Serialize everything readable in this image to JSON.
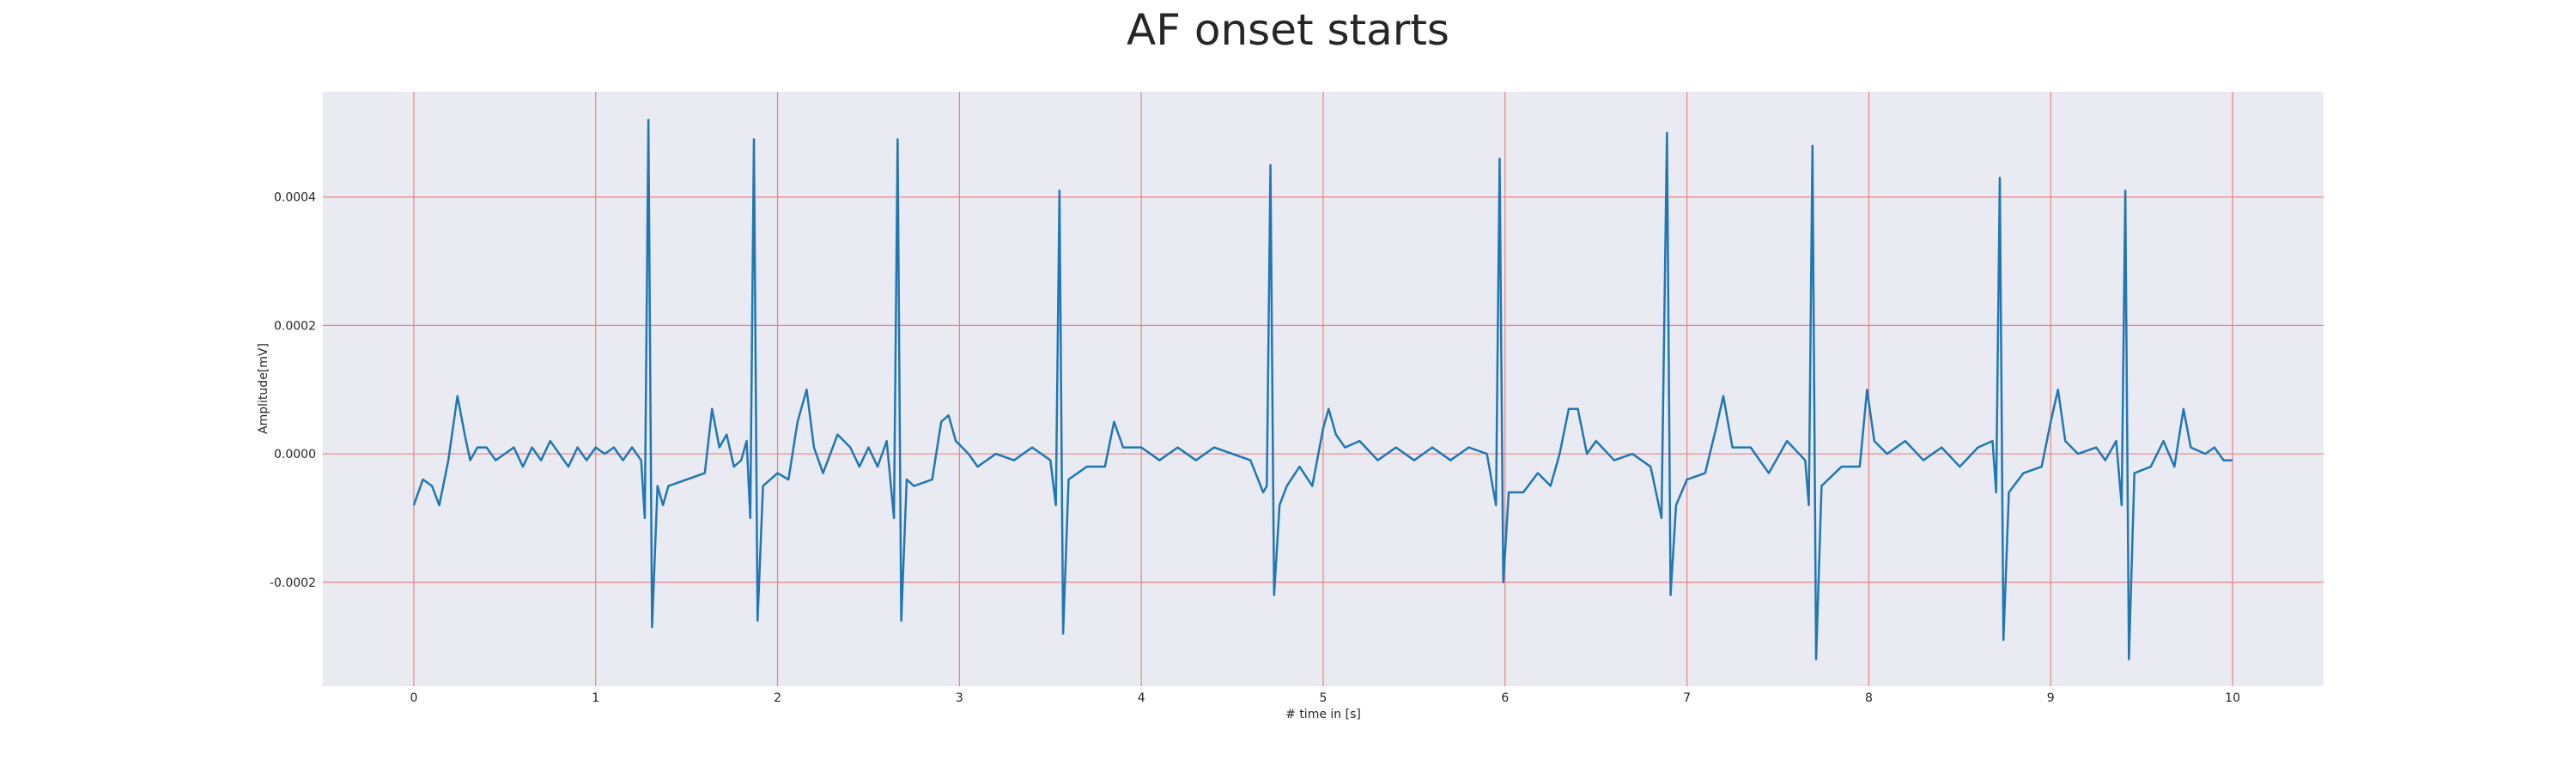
{
  "chart_data": {
    "type": "line",
    "title": "AF onset starts",
    "xlabel": "# time in [s]",
    "ylabel": "Amplitude[mV]",
    "color": "#1f77b4",
    "background": "#eaeaf2",
    "grid": true,
    "grid_color": "#f08080",
    "xlim": [
      -0.5,
      10.5
    ],
    "xticks": [
      0,
      1,
      2,
      3,
      4,
      5,
      6,
      7,
      8,
      9,
      10
    ],
    "ylim": [
      -0.000362,
      0.000564
    ],
    "yticks": [
      -0.0002,
      {
        "value": 0,
        "label": "0.0000"
      },
      0.0002,
      0.0004
    ],
    "x": [
      0,
      0.05,
      0.1,
      0.14,
      0.19,
      0.24,
      0.28,
      0.31,
      0.35,
      0.4,
      0.45,
      0.5,
      0.55,
      0.6,
      0.65,
      0.7,
      0.75,
      0.8,
      0.85,
      0.9,
      0.95,
      1.0,
      1.05,
      1.1,
      1.15,
      1.2,
      1.25,
      1.27,
      1.29,
      1.31,
      1.34,
      1.37,
      1.4,
      1.5,
      1.6,
      1.64,
      1.68,
      1.72,
      1.76,
      1.8,
      1.83,
      1.85,
      1.87,
      1.89,
      1.92,
      2.0,
      2.06,
      2.11,
      2.16,
      2.2,
      2.25,
      2.33,
      2.4,
      2.45,
      2.5,
      2.55,
      2.6,
      2.64,
      2.66,
      2.68,
      2.71,
      2.75,
      2.85,
      2.9,
      2.94,
      2.98,
      3.05,
      3.1,
      3.2,
      3.3,
      3.4,
      3.5,
      3.53,
      3.55,
      3.57,
      3.6,
      3.7,
      3.8,
      3.85,
      3.9,
      4.0,
      4.1,
      4.2,
      4.3,
      4.4,
      4.5,
      4.6,
      4.67,
      4.69,
      4.71,
      4.73,
      4.76,
      4.8,
      4.87,
      4.94,
      5.0,
      5.03,
      5.07,
      5.12,
      5.2,
      5.3,
      5.4,
      5.5,
      5.6,
      5.7,
      5.8,
      5.9,
      5.95,
      5.97,
      5.99,
      6.02,
      6.1,
      6.18,
      6.25,
      6.3,
      6.35,
      6.4,
      6.45,
      6.5,
      6.6,
      6.7,
      6.8,
      6.86,
      6.89,
      6.91,
      6.94,
      7.0,
      7.1,
      7.16,
      7.2,
      7.25,
      7.35,
      7.45,
      7.55,
      7.65,
      7.67,
      7.69,
      7.71,
      7.74,
      7.85,
      7.95,
      7.99,
      8.03,
      8.1,
      8.2,
      8.3,
      8.4,
      8.5,
      8.6,
      8.68,
      8.7,
      8.72,
      8.74,
      8.77,
      8.85,
      8.95,
      9.0,
      9.04,
      9.08,
      9.15,
      9.25,
      9.3,
      9.36,
      9.39,
      9.41,
      9.43,
      9.46,
      9.55,
      9.62,
      9.68,
      9.73,
      9.77,
      9.85,
      9.9,
      9.95,
      10.0
    ],
    "values": [
      -8e-05,
      -4e-05,
      -5e-05,
      -8e-05,
      -1e-05,
      9e-05,
      3e-05,
      -1e-05,
      1e-05,
      1e-05,
      -1e-05,
      0,
      1e-05,
      -2e-05,
      1e-05,
      -1e-05,
      2e-05,
      0,
      -2e-05,
      1e-05,
      -1e-05,
      1e-05,
      0,
      1e-05,
      -1e-05,
      1e-05,
      -1e-05,
      -0.0001,
      0.00052,
      -0.00027,
      -5e-05,
      -8e-05,
      -5e-05,
      -4e-05,
      -3e-05,
      7e-05,
      1e-05,
      3e-05,
      -2e-05,
      -1e-05,
      2e-05,
      -0.0001,
      0.00049,
      -0.00026,
      -5e-05,
      -3e-05,
      -4e-05,
      5e-05,
      0.0001,
      1e-05,
      -3e-05,
      3e-05,
      1e-05,
      -2e-05,
      1e-05,
      -2e-05,
      2e-05,
      -0.0001,
      0.00049,
      -0.00026,
      -4e-05,
      -5e-05,
      -4e-05,
      5e-05,
      6e-05,
      2e-05,
      0,
      -2e-05,
      0,
      -1e-05,
      1e-05,
      -1e-05,
      -8e-05,
      0.00041,
      -0.00028,
      -4e-05,
      -2e-05,
      -2e-05,
      5e-05,
      1e-05,
      1e-05,
      -1e-05,
      1e-05,
      -1e-05,
      1e-05,
      0,
      -1e-05,
      -6e-05,
      -5e-05,
      0.00045,
      -0.00022,
      -8e-05,
      -5e-05,
      -2e-05,
      -5e-05,
      4e-05,
      7e-05,
      3e-05,
      1e-05,
      2e-05,
      -1e-05,
      1e-05,
      -1e-05,
      1e-05,
      -1e-05,
      1e-05,
      0,
      -8e-05,
      0.00046,
      -0.0002,
      -6e-05,
      -6e-05,
      -3e-05,
      -5e-05,
      0,
      7e-05,
      7e-05,
      0,
      2e-05,
      -1e-05,
      0,
      -2e-05,
      -0.0001,
      0.0005,
      -0.00022,
      -8e-05,
      -4e-05,
      -3e-05,
      4e-05,
      9e-05,
      1e-05,
      1e-05,
      -3e-05,
      2e-05,
      -1e-05,
      -8e-05,
      0.00048,
      -0.00032,
      -5e-05,
      -2e-05,
      -2e-05,
      0.0001,
      2e-05,
      0,
      2e-05,
      -1e-05,
      1e-05,
      -2e-05,
      1e-05,
      2e-05,
      -6e-05,
      0.00043,
      -0.00029,
      -6e-05,
      -3e-05,
      -2e-05,
      5e-05,
      0.0001,
      2e-05,
      0,
      1e-05,
      -1e-05,
      2e-05,
      -8e-05,
      0.00041,
      -0.00032,
      -3e-05,
      -2e-05,
      2e-05,
      -2e-05,
      7e-05,
      1e-05,
      0,
      1e-05,
      -1e-05,
      -1e-05
    ]
  }
}
